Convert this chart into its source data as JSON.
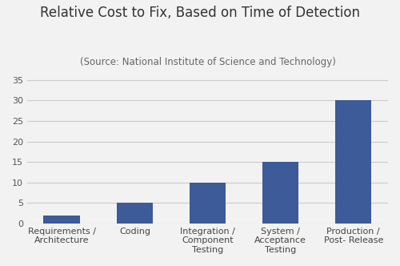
{
  "categories": [
    "Requirements /\nArchitecture",
    "Coding",
    "Integration /\nComponent\nTesting",
    "System /\nAcceptance\nTesting",
    "Production /\nPost- Release"
  ],
  "values": [
    2,
    5,
    10,
    15,
    30
  ],
  "bar_color": "#3d5a99",
  "title": "Relative Cost to Fix, Based on Time of Detection",
  "subtitle": "(Source: National Institute of Science and Technology)",
  "title_fontsize": 12,
  "subtitle_fontsize": 8.5,
  "tick_label_fontsize": 8,
  "ytick_labels": [
    0,
    5,
    10,
    15,
    20,
    25,
    30,
    35
  ],
  "ylim": [
    0,
    37
  ],
  "background_color": "#f2f2f2",
  "grid_color": "#cccccc",
  "bar_width": 0.5
}
